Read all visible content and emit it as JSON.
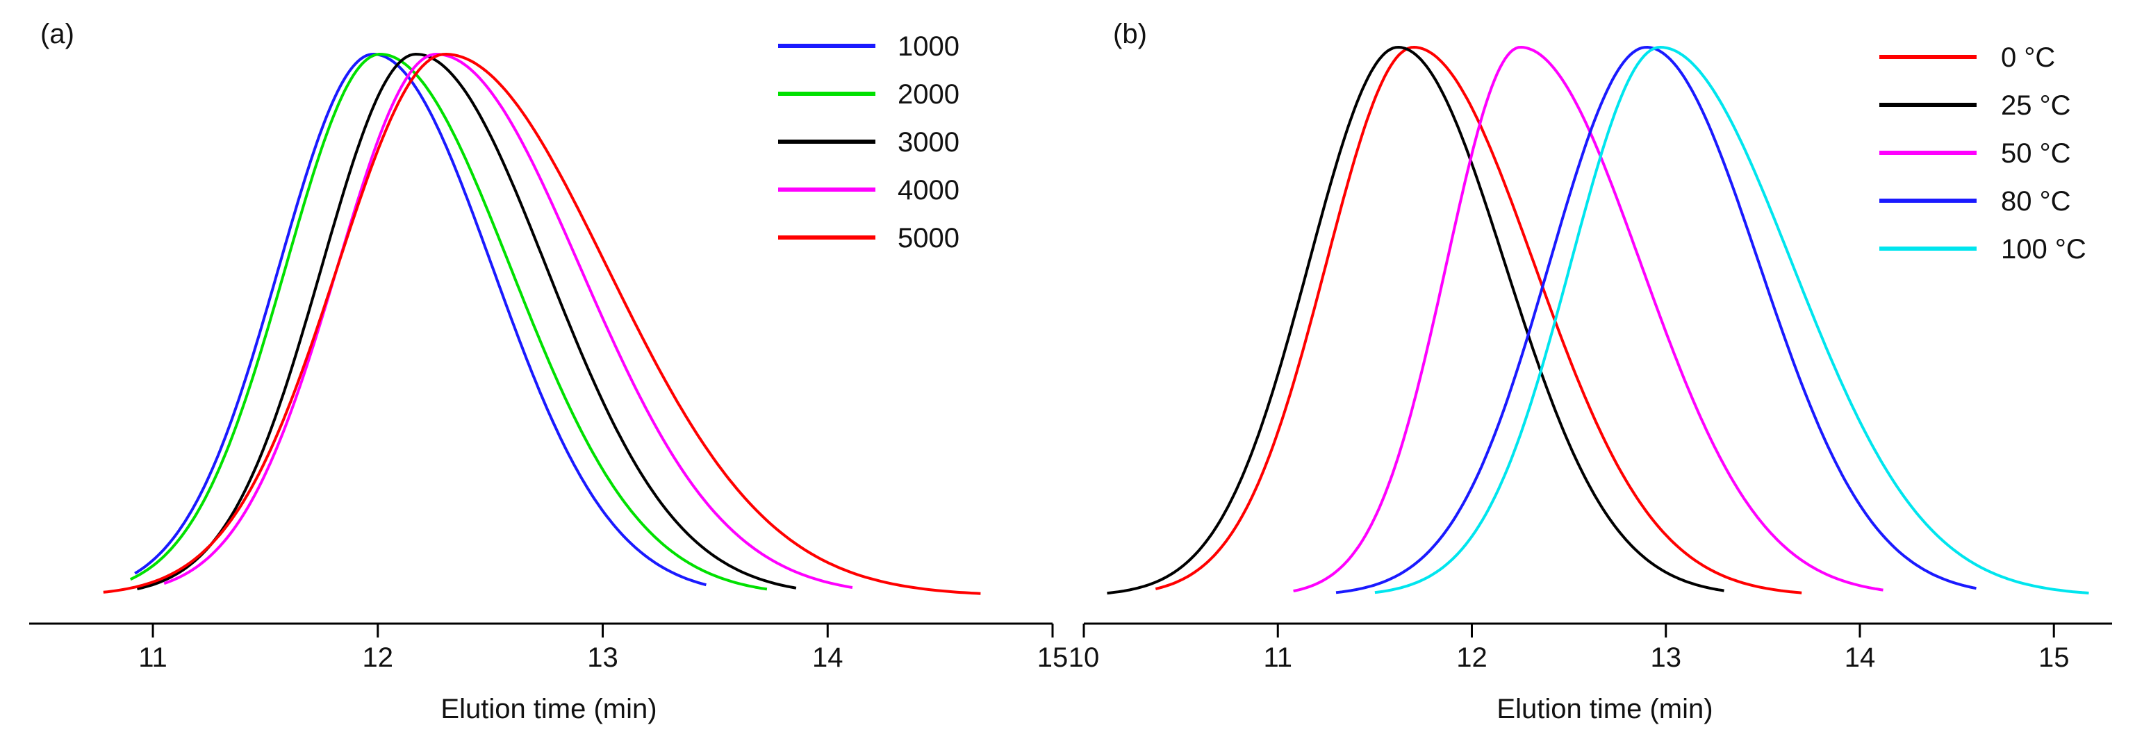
{
  "chart_data": [
    {
      "type": "line",
      "panel_label": "(a)",
      "xlabel": "Elution time (min)",
      "ylabel": "",
      "xlim": [
        10.45,
        15.0
      ],
      "ylim": [
        0,
        1.0
      ],
      "x_ticks": [
        11,
        12,
        13,
        14,
        15
      ],
      "x_tick_labels": [
        "11",
        "12",
        "13",
        "14",
        "15"
      ],
      "grid": false,
      "legend_position": "top-right",
      "series": [
        {
          "name": "1000",
          "color": "#1a1aff",
          "x_start": 10.92,
          "x_end": 13.46,
          "peak_x": 11.98,
          "left_sigma": 0.42,
          "right_sigma": 0.53
        },
        {
          "name": "2000",
          "color": "#00e000",
          "x_start": 10.9,
          "x_end": 13.73,
          "peak_x": 12.01,
          "left_sigma": 0.42,
          "right_sigma": 0.58
        },
        {
          "name": "3000",
          "color": "#000000",
          "x_start": 10.93,
          "x_end": 13.86,
          "peak_x": 12.17,
          "left_sigma": 0.42,
          "right_sigma": 0.58
        },
        {
          "name": "4000",
          "color": "#ff00ff",
          "x_start": 11.05,
          "x_end": 14.11,
          "peak_x": 12.26,
          "left_sigma": 0.44,
          "right_sigma": 0.64
        },
        {
          "name": "5000",
          "color": "#ff0000",
          "x_start": 10.78,
          "x_end": 14.68,
          "peak_x": 12.3,
          "left_sigma": 0.48,
          "right_sigma": 0.72
        }
      ]
    },
    {
      "type": "line",
      "panel_label": "(b)",
      "xlabel": "Elution time (min)",
      "ylabel": "",
      "xlim": [
        10.0,
        15.3
      ],
      "ylim": [
        0,
        1.0
      ],
      "x_ticks": [
        10,
        11,
        12,
        13,
        14,
        15
      ],
      "x_tick_labels": [
        "10",
        "11",
        "12",
        "13",
        "14",
        "15"
      ],
      "grid": false,
      "legend_position": "top-right",
      "series": [
        {
          "name": "0 °C",
          "color": "#ff0000",
          "x_start": 10.37,
          "x_end": 13.7,
          "peak_x": 11.7,
          "left_sigma": 0.45,
          "right_sigma": 0.62
        },
        {
          "name": "25 °C",
          "color": "#000000",
          "x_start": 10.12,
          "x_end": 13.3,
          "peak_x": 11.62,
          "left_sigma": 0.46,
          "right_sigma": 0.55
        },
        {
          "name": "50 °C",
          "color": "#ff00ff",
          "x_start": 11.08,
          "x_end": 14.12,
          "peak_x": 12.25,
          "left_sigma": 0.38,
          "right_sigma": 0.62
        },
        {
          "name": "80 °C",
          "color": "#1a1aff",
          "x_start": 11.3,
          "x_end": 14.6,
          "peak_x": 12.9,
          "left_sigma": 0.5,
          "right_sigma": 0.58
        },
        {
          "name": "100 °C",
          "color": "#00e5ee",
          "x_start": 11.5,
          "x_end": 15.18,
          "peak_x": 12.97,
          "left_sigma": 0.46,
          "right_sigma": 0.68
        }
      ]
    }
  ]
}
